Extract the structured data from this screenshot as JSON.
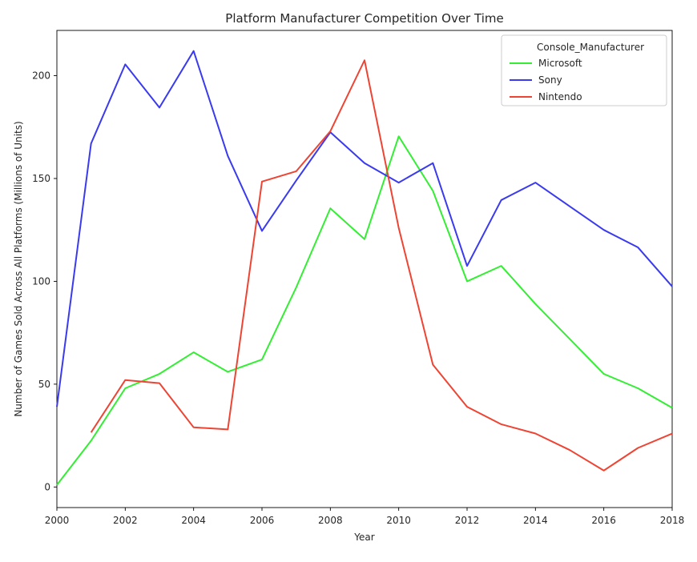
{
  "chart_data": {
    "type": "line",
    "title": "Platform Manufacturer Competition Over Time",
    "xlabel": "Year",
    "ylabel": "Number of Games Sold Across All Platforms (Millions of Units)",
    "xlim": [
      2000,
      2018
    ],
    "ylim": [
      -10,
      222
    ],
    "x_ticks": [
      "2000",
      "2002",
      "2004",
      "2006",
      "2008",
      "2010",
      "2012",
      "2014",
      "2016",
      "2018"
    ],
    "y_ticks": [
      "0",
      "50",
      "100",
      "150",
      "200"
    ],
    "grid": false,
    "legend": {
      "title": "Console_Manufacturer",
      "placement": "top-right"
    },
    "series": [
      {
        "name": "Microsoft",
        "color": "#33ee33",
        "points": [
          [
            2000,
            1
          ],
          [
            2001,
            22.5
          ],
          [
            2002,
            48
          ],
          [
            2003,
            55
          ],
          [
            2004,
            65.5
          ],
          [
            2005,
            56
          ],
          [
            2006,
            62
          ],
          [
            2007,
            97
          ],
          [
            2008,
            135.5
          ],
          [
            2009,
            120.5
          ],
          [
            2010,
            170.5
          ],
          [
            2011,
            144
          ],
          [
            2012,
            100
          ],
          [
            2013,
            107.5
          ],
          [
            2014,
            89
          ],
          [
            2015,
            72
          ],
          [
            2016,
            55
          ],
          [
            2017,
            48
          ],
          [
            2018,
            38.5
          ]
        ]
      },
      {
        "name": "Sony",
        "color": "#3a3aee",
        "points": [
          [
            2000,
            39
          ],
          [
            2001,
            167
          ],
          [
            2002,
            205.5
          ],
          [
            2003,
            184.5
          ],
          [
            2004,
            212
          ],
          [
            2005,
            161
          ],
          [
            2006,
            124.5
          ],
          [
            2007,
            149
          ],
          [
            2008,
            172.5
          ],
          [
            2009,
            157.5
          ],
          [
            2010,
            148
          ],
          [
            2011,
            157.5
          ],
          [
            2012,
            107.5
          ],
          [
            2013,
            139.5
          ],
          [
            2014,
            148
          ],
          [
            2015,
            136.5
          ],
          [
            2016,
            125
          ],
          [
            2017,
            116.5
          ],
          [
            2018,
            97.5
          ]
        ]
      },
      {
        "name": "Nintendo",
        "color": "#ee4433",
        "points": [
          [
            2001,
            26.5
          ],
          [
            2002,
            52
          ],
          [
            2003,
            50.5
          ],
          [
            2004,
            29
          ],
          [
            2005,
            28
          ],
          [
            2006,
            148.5
          ],
          [
            2007,
            153.5
          ],
          [
            2008,
            173
          ],
          [
            2009,
            207.5
          ],
          [
            2010,
            126
          ],
          [
            2011,
            59.5
          ],
          [
            2012,
            39
          ],
          [
            2013,
            30.5
          ],
          [
            2014,
            26
          ],
          [
            2015,
            18
          ],
          [
            2016,
            8
          ],
          [
            2017,
            19
          ],
          [
            2018,
            26
          ]
        ]
      }
    ]
  }
}
